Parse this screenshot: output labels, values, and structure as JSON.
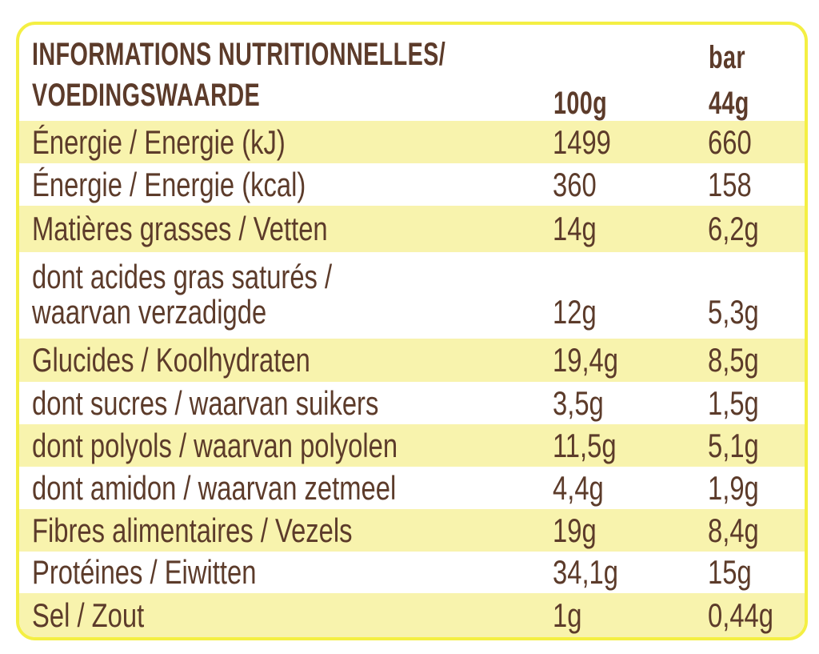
{
  "header": {
    "title_line1": "INFORMATIONS NUTRITIONNELLES/",
    "title_line2": "VOEDINGSWAARDE",
    "col_per100": "100g",
    "col_bar_line1": "bar",
    "col_bar_line2": "44g"
  },
  "rows": [
    {
      "label": "Énergie / Energie (kJ)",
      "per100": "1499",
      "per_bar": "660"
    },
    {
      "label": "Énergie / Energie (kcal)",
      "per100": "360",
      "per_bar": "158"
    },
    {
      "label": "Matières grasses / Vetten",
      "per100": "14g",
      "per_bar": "6,2g"
    },
    {
      "label_line1": "dont acides gras saturés /",
      "label_line2": "waarvan verzadigde",
      "per100": "12g",
      "per_bar": "5,3g"
    },
    {
      "label": "Glucides / Koolhydraten",
      "per100": "19,4g",
      "per_bar": "8,5g"
    },
    {
      "label": "dont sucres / waarvan suikers",
      "per100": "3,5g",
      "per_bar": "1,5g"
    },
    {
      "label": "dont polyols / waarvan polyolen",
      "per100": "11,5g",
      "per_bar": "5,1g"
    },
    {
      "label": "dont amidon / waarvan zetmeel",
      "per100": "4,4g",
      "per_bar": "1,9g"
    },
    {
      "label": "Fibres alimentaires / Vezels",
      "per100": "19g",
      "per_bar": "8,4g"
    },
    {
      "label": "Protéines / Eiwitten",
      "per100": "34,1g",
      "per_bar": "15g"
    },
    {
      "label": "Sel / Zout",
      "per100": "1g",
      "per_bar": "0,44g"
    }
  ],
  "colors": {
    "border": "#f4ef43",
    "shade": "#f8f3ad",
    "text": "#5c3b2a"
  }
}
